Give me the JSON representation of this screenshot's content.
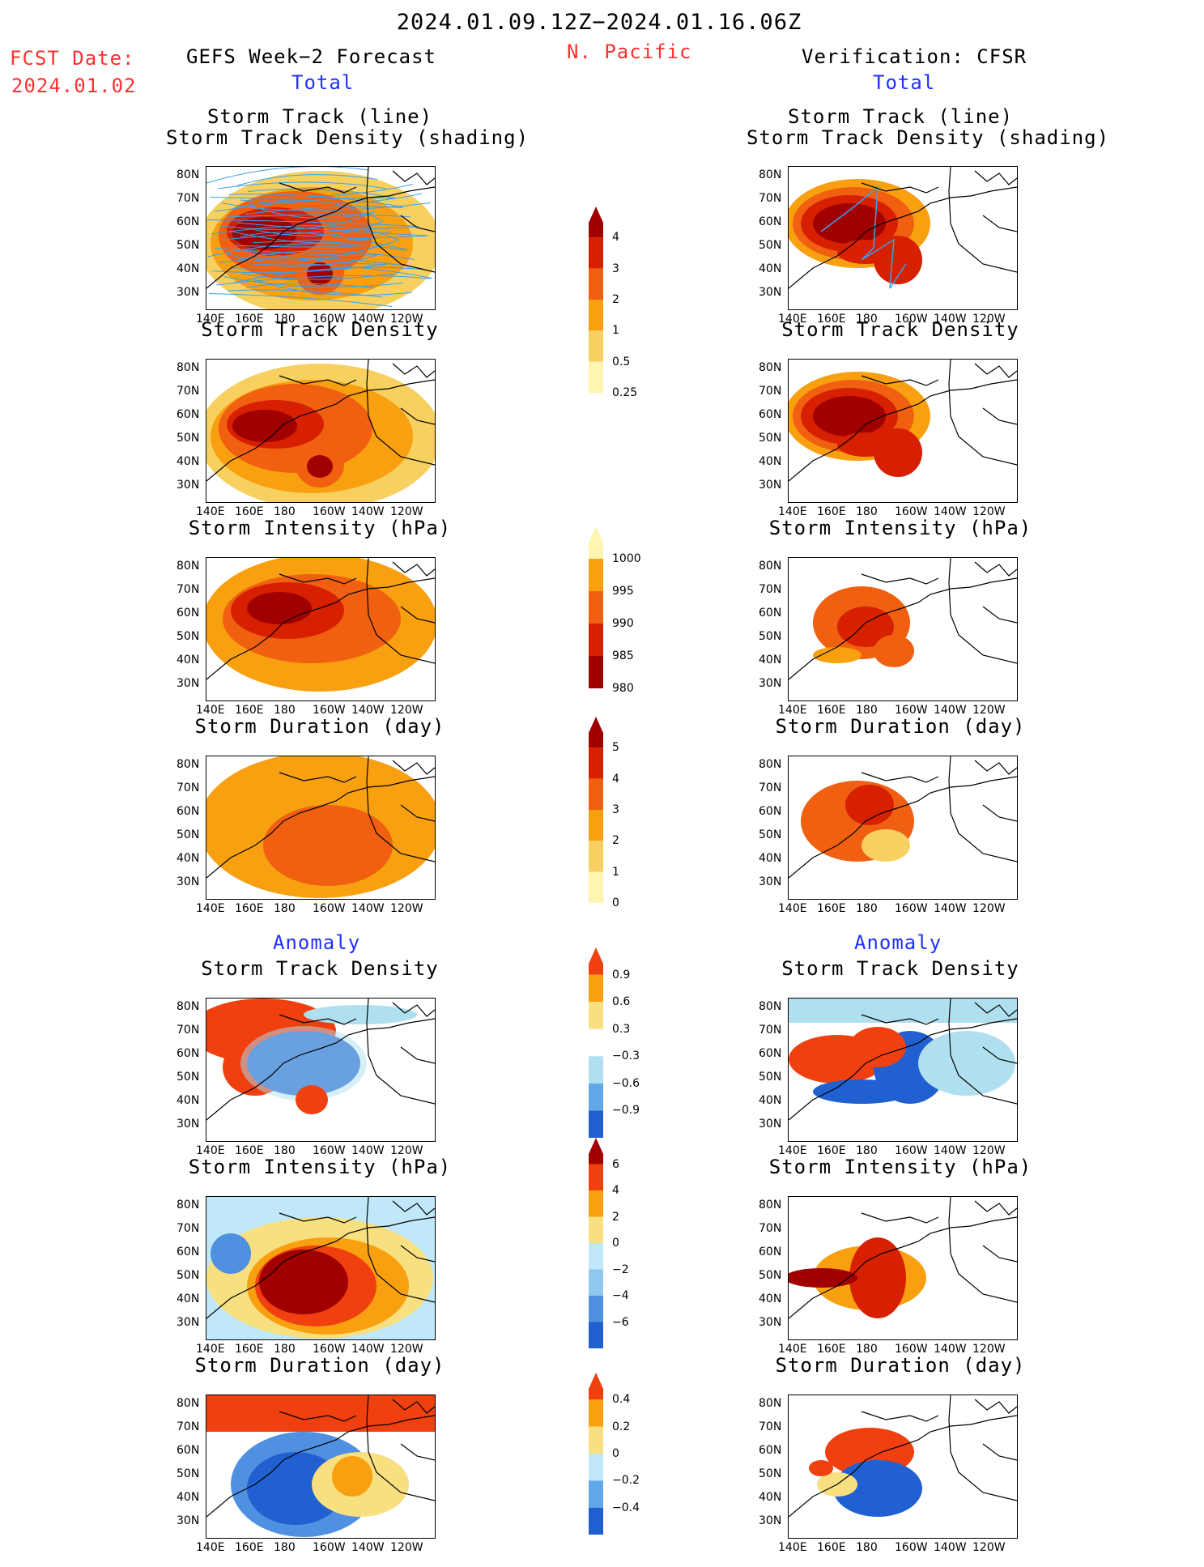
{
  "header": {
    "period": "2024.01.09.12Z−2024.01.16.06Z",
    "fcst_label": "FCST Date:",
    "fcst_date": "2024.01.02",
    "left_title": "GEFS Week−2 Forecast",
    "region": "N. Pacific",
    "right_title": "Verification: CFSR",
    "total_label": "Total",
    "anomaly_label": "Anomaly"
  },
  "panel_titles": {
    "track_line": "Storm Track (line)",
    "track_shading": "Storm Track Density (shading)",
    "density": "Storm Track Density",
    "intensity": "Storm Intensity (hPa)",
    "duration": "Storm Duration (day)"
  },
  "axes": {
    "lat_ticks": [
      "80N",
      "70N",
      "60N",
      "50N",
      "40N",
      "30N"
    ],
    "lon_ticks": [
      "140E",
      "160E",
      "180",
      "160W",
      "140W",
      "120W"
    ]
  },
  "colorbars": {
    "density_total": {
      "labels": [
        "4",
        "3",
        "2",
        "1",
        "0.5",
        "0.25"
      ],
      "colors": [
        "#a00000",
        "#d62000",
        "#f06010",
        "#f8a010",
        "#f8d060",
        "#fff4b0"
      ]
    },
    "intensity_total": {
      "labels": [
        "1000",
        "995",
        "990",
        "985",
        "980"
      ],
      "colors": [
        "#fff4b0",
        "#f8a010",
        "#f06010",
        "#d62000",
        "#a00000"
      ]
    },
    "duration_total": {
      "labels": [
        "5",
        "4",
        "3",
        "2",
        "1",
        "0"
      ],
      "colors": [
        "#a00000",
        "#d62000",
        "#f06010",
        "#f8a010",
        "#f8d060",
        "#fff4b0"
      ]
    },
    "density_anom": {
      "labels": [
        "0.9",
        "0.6",
        "0.3",
        "−0.3",
        "−0.6",
        "−0.9"
      ],
      "colors": [
        "#f04010",
        "#f8a010",
        "#f8e080",
        "#ffffff",
        "#b0e0f0",
        "#60a8e8",
        "#2060d0"
      ]
    },
    "intensity_anom": {
      "labels": [
        "6",
        "4",
        "2",
        "0",
        "−2",
        "−4",
        "−6"
      ],
      "colors": [
        "#a00000",
        "#f04010",
        "#f8a010",
        "#f8e080",
        "#c0e8f8",
        "#90c8f0",
        "#5090e0",
        "#2060d0"
      ]
    },
    "duration_anom": {
      "labels": [
        "0.4",
        "0.2",
        "0",
        "−0.2",
        "−0.4"
      ],
      "colors": [
        "#f04010",
        "#f8a010",
        "#f8e080",
        "#c0e8f8",
        "#60a8e8",
        "#2060d0"
      ]
    }
  }
}
